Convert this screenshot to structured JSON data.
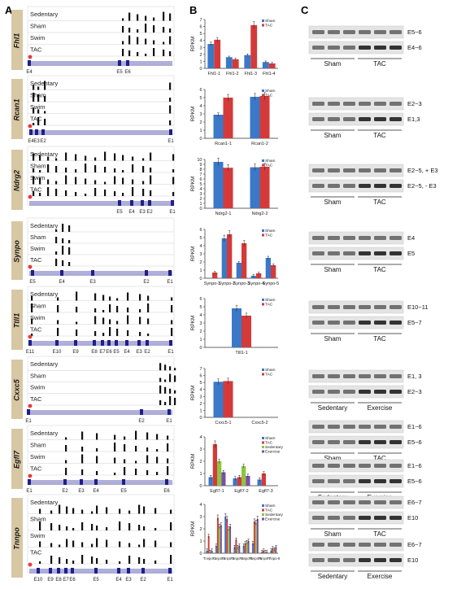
{
  "panels": {
    "a": "A",
    "b": "B",
    "c": "C"
  },
  "tracks": [
    "Sedentary",
    "Sham",
    "Swim",
    "TAC"
  ],
  "genes": [
    {
      "name": "Fhl1",
      "exons": [
        {
          "t": "E4",
          "x": 36
        },
        {
          "t": "E5",
          "x": 147
        },
        {
          "t": "E6",
          "x": 157
        }
      ],
      "peaks": [
        150,
        158,
        168,
        178,
        188,
        200,
        208
      ]
    },
    {
      "name": "Rcan1",
      "exons": [
        {
          "t": "E4",
          "x": 38
        },
        {
          "t": "E3",
          "x": 45
        },
        {
          "t": "E2",
          "x": 53
        },
        {
          "t": "E1",
          "x": 210
        }
      ],
      "peaks": [
        40,
        46,
        54,
        208
      ]
    },
    {
      "name": "Ndrg2",
      "exons": [
        {
          "t": "E5",
          "x": 147
        },
        {
          "t": "E4",
          "x": 162
        },
        {
          "t": "E3",
          "x": 175
        },
        {
          "t": "E2",
          "x": 184
        },
        {
          "t": "E1",
          "x": 212
        }
      ],
      "peaks": [
        40,
        48,
        58,
        68,
        80,
        92,
        104,
        116,
        128,
        140,
        150,
        162,
        175,
        184,
        212
      ]
    },
    {
      "name": "Synpo",
      "exons": [
        {
          "t": "E5",
          "x": 40
        },
        {
          "t": "E4",
          "x": 76
        },
        {
          "t": "E3",
          "x": 114
        },
        {
          "t": "E2",
          "x": 180
        },
        {
          "t": "E1",
          "x": 209
        }
      ],
      "peaks": [
        68,
        76,
        84
      ]
    },
    {
      "name": "Ttll1",
      "exons": [
        {
          "t": "E11",
          "x": 37
        },
        {
          "t": "E10",
          "x": 70
        },
        {
          "t": "E9",
          "x": 93
        },
        {
          "t": "E8",
          "x": 116
        },
        {
          "t": "E7",
          "x": 126
        },
        {
          "t": "E6",
          "x": 134
        },
        {
          "t": "E5",
          "x": 143
        },
        {
          "t": "E4",
          "x": 156
        },
        {
          "t": "E3",
          "x": 171
        },
        {
          "t": "E2",
          "x": 181
        },
        {
          "t": "E1",
          "x": 210
        }
      ],
      "peaks": [
        38,
        70,
        93,
        116,
        126,
        134,
        143,
        156,
        171,
        181,
        210
      ]
    },
    {
      "name": "Cxxc5",
      "exons": [
        {
          "t": "E1",
          "x": 35
        },
        {
          "t": "E2",
          "x": 174
        },
        {
          "t": "E1",
          "x": 208
        }
      ],
      "peaks": [
        196,
        202,
        208,
        214
      ]
    },
    {
      "name": "Egfl7",
      "exons": [
        {
          "t": "E1",
          "x": 36
        },
        {
          "t": "E2",
          "x": 80
        },
        {
          "t": "E3",
          "x": 100
        },
        {
          "t": "E4",
          "x": 118
        },
        {
          "t": "E5",
          "x": 152
        },
        {
          "t": "E6",
          "x": 205
        }
      ],
      "peaks": [
        80,
        100,
        118,
        140,
        152,
        166,
        180,
        192,
        205
      ]
    },
    {
      "name": "Tnnpo",
      "exons": [
        {
          "t": "E10",
          "x": 47
        },
        {
          "t": "E9",
          "x": 62
        },
        {
          "t": "E8",
          "x": 72
        },
        {
          "t": "E7",
          "x": 81
        },
        {
          "t": "E6",
          "x": 89
        },
        {
          "t": "E5",
          "x": 118
        },
        {
          "t": "E4",
          "x": 146
        },
        {
          "t": "E3",
          "x": 158
        },
        {
          "t": "E2",
          "x": 176
        },
        {
          "t": "E1",
          "x": 209
        }
      ],
      "peaks": [
        48,
        62,
        72,
        81,
        89,
        100,
        112,
        118,
        130,
        146,
        158,
        170,
        176,
        190,
        209
      ]
    }
  ],
  "chart_data": [
    {
      "type": "bar",
      "ylabel": "RPKM",
      "ylim": [
        0,
        7
      ],
      "yticks": [
        0,
        1,
        2,
        3,
        4,
        5,
        6,
        7
      ],
      "categories": [
        "Fhl1-1",
        "Fhl1-2",
        "Fhl1-3",
        "Fhl1-4"
      ],
      "series": [
        {
          "name": "Sham",
          "values": [
            3.5,
            1.6,
            1.9,
            0.9
          ]
        },
        {
          "name": "TAC",
          "values": [
            4.1,
            1.3,
            6.2,
            0.7
          ]
        }
      ]
    },
    {
      "type": "bar",
      "ylabel": "RPKM",
      "ylim": [
        0,
        6
      ],
      "yticks": [
        0,
        1,
        2,
        3,
        4,
        5,
        6
      ],
      "categories": [
        "Rcan1-1",
        "Rcan1-2"
      ],
      "series": [
        {
          "name": "Sham",
          "values": [
            2.9,
            5.1
          ]
        },
        {
          "name": "TAC",
          "values": [
            5.0,
            5.2
          ]
        }
      ]
    },
    {
      "type": "bar",
      "ylabel": "RPKM",
      "ylim": [
        0,
        10
      ],
      "yticks": [
        0,
        1,
        2,
        3,
        4,
        5,
        6,
        7,
        8,
        9,
        10
      ],
      "categories": [
        "Ndrg2-1",
        "Ndrg2-2"
      ],
      "series": [
        {
          "name": "Sham",
          "values": [
            9.5,
            8.4
          ]
        },
        {
          "name": "TAC",
          "values": [
            8.3,
            8.5
          ]
        }
      ]
    },
    {
      "type": "bar",
      "ylabel": "RPKM",
      "ylim": [
        0,
        6
      ],
      "yticks": [
        0,
        1,
        2,
        3,
        4,
        5,
        6
      ],
      "categories": [
        "Synpo-1",
        "Synpo-2",
        "Synpo-3",
        "Synpo-4",
        "Synpo-5"
      ],
      "series": [
        {
          "name": "Sham",
          "values": [
            0.0,
            4.9,
            1.9,
            0.3,
            2.5
          ]
        },
        {
          "name": "TAC",
          "values": [
            0.7,
            5.4,
            4.3,
            0.6,
            1.6
          ]
        }
      ]
    },
    {
      "type": "bar",
      "ylabel": "RPKM",
      "ylim": [
        0,
        6
      ],
      "yticks": [
        0,
        1,
        2,
        3,
        4,
        5,
        6
      ],
      "categories": [
        "Ttll1-1"
      ],
      "series": [
        {
          "name": "Sham",
          "values": [
            4.8
          ]
        },
        {
          "name": "TAC",
          "values": [
            3.9
          ]
        }
      ]
    },
    {
      "type": "bar",
      "ylabel": "RPKM",
      "ylim": [
        0,
        7
      ],
      "yticks": [
        0,
        1,
        2,
        3,
        4,
        5,
        6,
        7
      ],
      "categories": [
        "Cxxc5-1",
        "Cxxc5-2"
      ],
      "series": [
        {
          "name": "Sham",
          "values": [
            5.1,
            0.0
          ]
        },
        {
          "name": "TAC",
          "values": [
            5.2,
            0.0
          ]
        }
      ]
    },
    {
      "type": "bar",
      "ylabel": "RPKM",
      "ylim": [
        0,
        4
      ],
      "yticks": [
        0,
        1,
        2,
        3,
        4
      ],
      "categories": [
        "Egfl7-1",
        "Egfl7-2",
        "Egfl7-3"
      ],
      "series": [
        {
          "name": "Sham",
          "values": [
            0.7,
            0.6,
            0.5
          ]
        },
        {
          "name": "TAC",
          "values": [
            3.4,
            0.7,
            1.0
          ]
        },
        {
          "name": "Sedentary",
          "values": [
            2.0,
            1.6,
            0.0
          ]
        },
        {
          "name": "Exercise",
          "values": [
            1.1,
            0.8,
            0.0
          ]
        }
      ]
    },
    {
      "type": "bar",
      "ylabel": "RPKM",
      "ylim": [
        0,
        4
      ],
      "yticks": [
        0,
        1,
        2,
        3,
        4
      ],
      "categories": [
        "Tnnpo-1",
        "Tnnpo-2",
        "Tnnpo-3",
        "Tnnpo-4",
        "Tnnpo-5",
        "Tnnpo-6",
        "Tnnpo-7",
        "Tnnpo-8"
      ],
      "series": [
        {
          "name": "Sham",
          "values": [
            0.2,
            0.6,
            3.0,
            0.5,
            0.6,
            0.8,
            0.1,
            0.2
          ]
        },
        {
          "name": "TAC",
          "values": [
            1.4,
            2.9,
            2.8,
            1.1,
            0.8,
            2.6,
            0.2,
            0.4
          ]
        },
        {
          "name": "Sedentary",
          "values": [
            0.1,
            2.2,
            2.0,
            0.5,
            0.9,
            2.5,
            0.1,
            0.3
          ]
        },
        {
          "name": "Exercise",
          "values": [
            0.2,
            2.3,
            2.2,
            0.6,
            1.0,
            2.8,
            0.1,
            0.5
          ]
        }
      ]
    }
  ],
  "series_colors": {
    "Sham": "#3a78c8",
    "TAC": "#d43a3a",
    "Sedentary": "#8cc63f",
    "Exercise": "#7a4fa8"
  },
  "gels": [
    {
      "bands": [
        "E5~6",
        "E4~6"
      ],
      "group": [
        "Sham",
        "TAC"
      ]
    },
    {
      "bands": [
        "E2~3",
        "E1,3"
      ],
      "group": [
        "Sham",
        "TAC"
      ]
    },
    {
      "bands": [
        "E2~5, + E3",
        "E2~5, - E3"
      ],
      "group": [
        "Sham",
        "TAC"
      ]
    },
    {
      "bands": [
        "E4",
        "E5"
      ],
      "group": [
        "Sham",
        "TAC"
      ]
    },
    {
      "bands": [
        "E10~11",
        "E5~7"
      ],
      "group": [
        "Sham",
        "TAC"
      ]
    },
    {
      "bands": [
        "E1, 3",
        "E2~3"
      ],
      "group": [
        "Sedentary",
        "Exercise"
      ]
    },
    {
      "bands": [
        "E1~6",
        "E5~6"
      ],
      "group": [
        "Sham",
        "TAC"
      ]
    },
    {
      "bands": [
        "E1~6",
        "E5~6"
      ],
      "group": [
        "Sedentary",
        "Exercise"
      ]
    },
    {
      "bands": [
        "E6~7",
        "E10"
      ],
      "group": [
        "Sham",
        "TAC"
      ]
    },
    {
      "bands": [
        "E6~7",
        "E10"
      ],
      "group": [
        "Sedentary",
        "Exercise"
      ]
    }
  ]
}
